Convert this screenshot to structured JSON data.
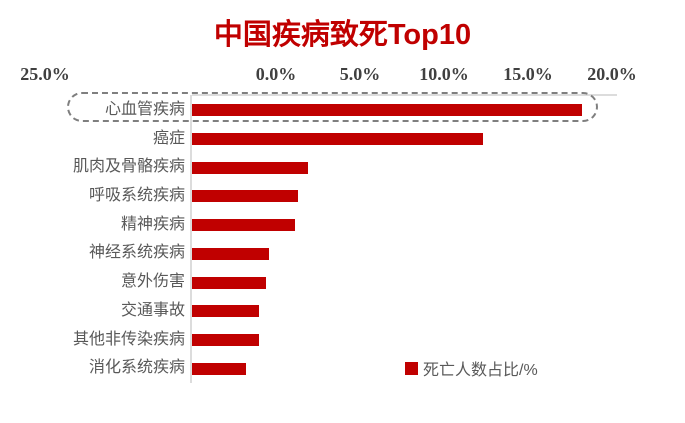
{
  "title": "中国疾病致死Top10",
  "colors": {
    "bar": "#C00000",
    "title": "#C00000",
    "axis_tick_text": "#404040",
    "category_text": "#595959",
    "legend_text": "#595959",
    "axis_line": "#DCDCDC",
    "highlight_border": "#7F7F7F"
  },
  "legend": {
    "marker": "red-square",
    "label": "死亡人数占比/%"
  },
  "highlight": {
    "style": "dashed-rounded-box",
    "category": "心血管疾病"
  },
  "chart_data": {
    "type": "bar",
    "orientation": "horizontal",
    "title": "中国疾病致死Top10",
    "series_name": "死亡人数占比/%",
    "categories": [
      "心血管疾病",
      "癌症",
      "肌肉及骨骼疾病",
      "呼吸系统疾病",
      "精神疾病",
      "神经系统疾病",
      "意外伤害",
      "交通事故",
      "其他非传染疾病",
      "消化系统疾病"
    ],
    "values": [
      23.2,
      17.3,
      6.9,
      6.3,
      6.1,
      4.6,
      4.4,
      4.0,
      4.0,
      3.2
    ],
    "value_unit": "%",
    "x_axis": {
      "position": "top",
      "min": 0,
      "max": 25,
      "tick_labels": [
        "0.0%",
        "5.0%",
        "10.0%",
        "15.0%",
        "20.0%",
        "25.0%"
      ]
    },
    "grid": false,
    "legend_position": "bottom-right",
    "highlighted_category": "心血管疾病"
  }
}
